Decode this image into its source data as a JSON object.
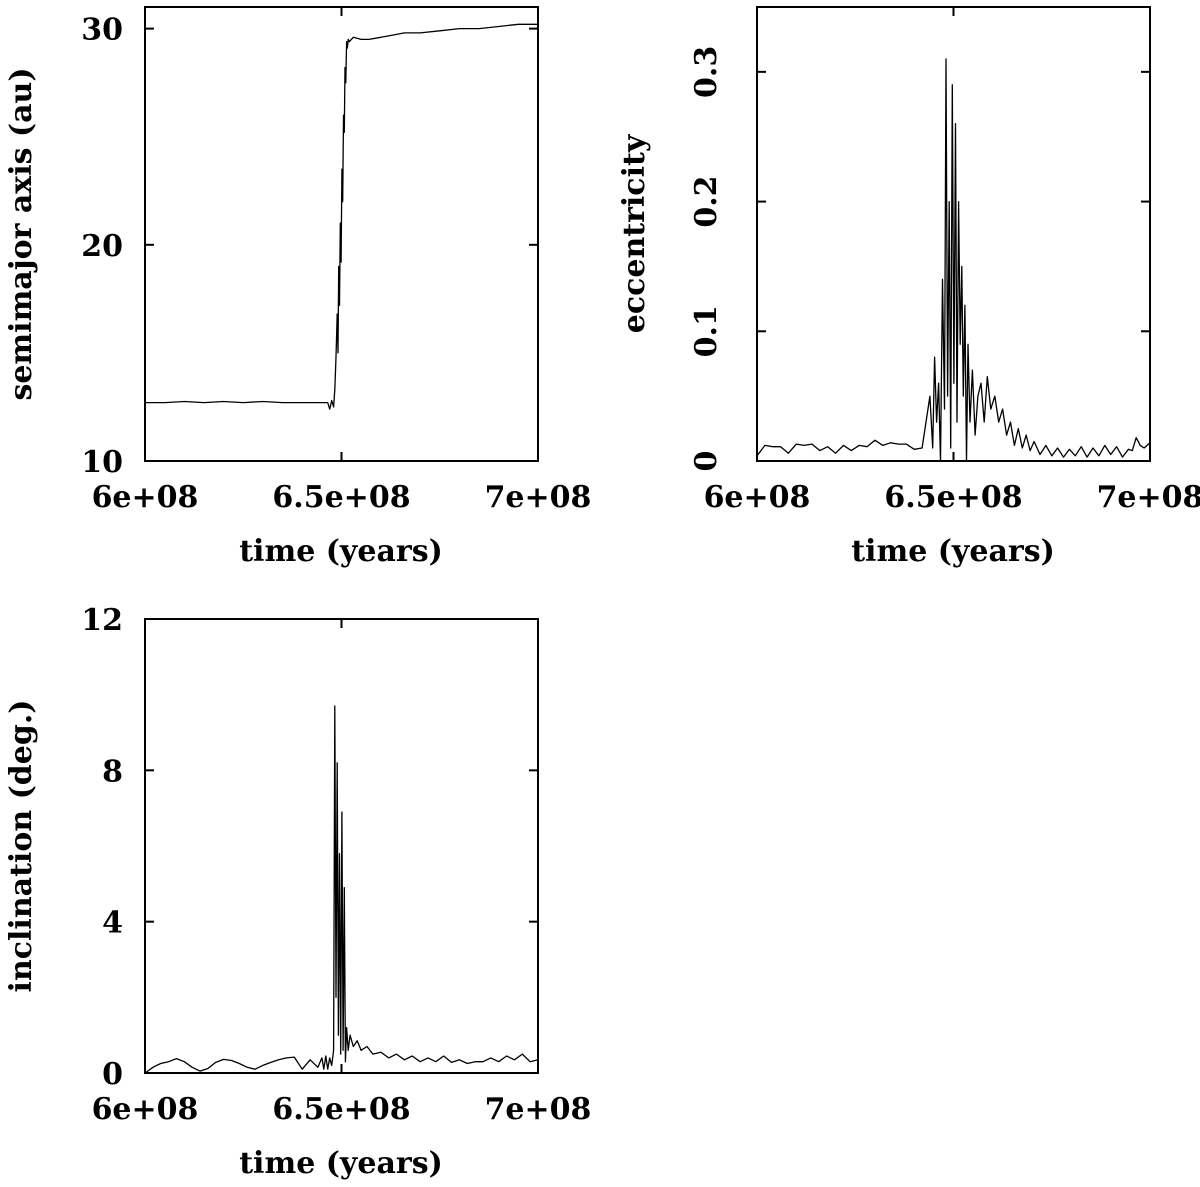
{
  "chart_data": [
    {
      "id": "semimajor",
      "type": "line",
      "title": "",
      "xlabel": "time (years)",
      "ylabel": "semimajor axis (au)",
      "xlim": [
        600000000,
        700000000
      ],
      "ylim": [
        10,
        31
      ],
      "xticks": [
        600000000,
        650000000,
        700000000
      ],
      "xtick_labels": [
        "6e+08",
        "6.5e+08",
        "7e+08"
      ],
      "yticks": [
        10,
        20,
        30
      ],
      "ytick_labels": [
        "10",
        "20",
        "30"
      ],
      "grid": false,
      "series": [
        {
          "name": "semimajor axis",
          "x": [
            600000000,
            605000000,
            610000000,
            615000000,
            620000000,
            625000000,
            630000000,
            635000000,
            640000000,
            645000000,
            646500000,
            647000000,
            647500000,
            648000000,
            648300000,
            648600000,
            648900000,
            649100000,
            649300000,
            649500000,
            649700000,
            649900000,
            650100000,
            650300000,
            650500000,
            650700000,
            650900000,
            651100000,
            651300000,
            651500000,
            651700000,
            652000000,
            653000000,
            655000000,
            657000000,
            660000000,
            663000000,
            666000000,
            670000000,
            675000000,
            680000000,
            685000000,
            690000000,
            695000000,
            700000000
          ],
          "values": [
            12.7,
            12.7,
            12.75,
            12.7,
            12.75,
            12.7,
            12.75,
            12.7,
            12.7,
            12.7,
            12.7,
            12.4,
            12.8,
            12.5,
            13.3,
            14.8,
            16.8,
            15.0,
            19.0,
            17.2,
            21.0,
            19.2,
            23.5,
            22.0,
            26.0,
            25.2,
            28.2,
            27.5,
            29.4,
            29.1,
            29.5,
            29.4,
            29.6,
            29.5,
            29.5,
            29.6,
            29.7,
            29.8,
            29.8,
            29.9,
            30.0,
            30.0,
            30.1,
            30.2,
            30.2
          ]
        }
      ]
    },
    {
      "id": "eccentricity",
      "type": "line",
      "title": "",
      "xlabel": "time (years)",
      "ylabel": "eccentricity",
      "xlim": [
        600000000,
        700000000
      ],
      "ylim": [
        0,
        0.35
      ],
      "xticks": [
        600000000,
        650000000,
        700000000
      ],
      "xtick_labels": [
        "6e+08",
        "6.5e+08",
        "7e+08"
      ],
      "yticks": [
        0,
        0.1,
        0.2,
        0.3
      ],
      "ytick_labels": [
        "0",
        "0.1",
        "0.2",
        "0.3"
      ],
      "grid": false,
      "series": [
        {
          "name": "eccentricity",
          "x": [
            600000000,
            602000000,
            604000000,
            606000000,
            608000000,
            610000000,
            612000000,
            614000000,
            616000000,
            618000000,
            620000000,
            622000000,
            624000000,
            626000000,
            628000000,
            630000000,
            632000000,
            634000000,
            636000000,
            638000000,
            640000000,
            642000000,
            643000000,
            644000000,
            644700000,
            645200000,
            645700000,
            646200000,
            646700000,
            647200000,
            647700000,
            648100000,
            648500000,
            648900000,
            649300000,
            649700000,
            650100000,
            650500000,
            650900000,
            651300000,
            651700000,
            652100000,
            652500000,
            652900000,
            653300000,
            653700000,
            654200000,
            654800000,
            655500000,
            656200000,
            657000000,
            657800000,
            658600000,
            659500000,
            660500000,
            661500000,
            662500000,
            663500000,
            664500000,
            665500000,
            666500000,
            667500000,
            668500000,
            669500000,
            670500000,
            672000000,
            673500000,
            675000000,
            676500000,
            678000000,
            679500000,
            681000000,
            682500000,
            684000000,
            685500000,
            687000000,
            688500000,
            690000000,
            691500000,
            693000000,
            694500000,
            695500000,
            696500000,
            697500000,
            698500000,
            700000000
          ],
          "values": [
            0.004,
            0.012,
            0.011,
            0.011,
            0.006,
            0.013,
            0.012,
            0.013,
            0.008,
            0.011,
            0.006,
            0.012,
            0.008,
            0.012,
            0.011,
            0.016,
            0.012,
            0.014,
            0.013,
            0.013,
            0.009,
            0.01,
            0.03,
            0.05,
            0.01,
            0.08,
            0.03,
            0.06,
            0.0,
            0.14,
            0.04,
            0.31,
            0.05,
            0.2,
            0.01,
            0.29,
            0.06,
            0.26,
            0.03,
            0.2,
            0.09,
            0.15,
            0.05,
            0.12,
            0.0,
            0.09,
            0.03,
            0.07,
            0.02,
            0.05,
            0.06,
            0.03,
            0.065,
            0.04,
            0.05,
            0.03,
            0.04,
            0.02,
            0.03,
            0.012,
            0.025,
            0.01,
            0.02,
            0.008,
            0.015,
            0.005,
            0.012,
            0.004,
            0.01,
            0.003,
            0.009,
            0.004,
            0.011,
            0.003,
            0.01,
            0.004,
            0.012,
            0.005,
            0.011,
            0.003,
            0.009,
            0.008,
            0.018,
            0.012,
            0.01,
            0.014
          ]
        }
      ]
    },
    {
      "id": "inclination",
      "type": "line",
      "title": "",
      "xlabel": "time (years)",
      "ylabel": "inclination (deg.)",
      "xlim": [
        600000000,
        700000000
      ],
      "ylim": [
        0,
        12
      ],
      "xticks": [
        600000000,
        650000000,
        700000000
      ],
      "xtick_labels": [
        "6e+08",
        "6.5e+08",
        "7e+08"
      ],
      "yticks": [
        0,
        4,
        8,
        12
      ],
      "ytick_labels": [
        "0",
        "4",
        "8",
        "12"
      ],
      "grid": false,
      "series": [
        {
          "name": "inclination",
          "x": [
            600000000,
            602000000,
            604000000,
            606000000,
            608000000,
            610000000,
            612000000,
            614000000,
            616000000,
            618000000,
            620000000,
            622000000,
            624000000,
            626000000,
            628000000,
            630000000,
            632000000,
            634000000,
            636000000,
            638000000,
            640000000,
            642000000,
            644000000,
            645000000,
            645500000,
            646000000,
            646500000,
            647000000,
            647500000,
            648000000,
            648300000,
            648600000,
            648900000,
            649200000,
            649500000,
            649800000,
            650100000,
            650400000,
            650700000,
            651000000,
            651300000,
            651700000,
            652200000,
            653000000,
            654000000,
            655000000,
            656500000,
            658000000,
            660000000,
            662000000,
            664000000,
            666000000,
            668000000,
            670000000,
            672000000,
            674000000,
            676000000,
            678000000,
            680000000,
            682000000,
            684000000,
            686000000,
            688000000,
            690000000,
            692000000,
            694000000,
            696000000,
            698000000,
            700000000
          ],
          "values": [
            0.0,
            0.15,
            0.25,
            0.3,
            0.38,
            0.3,
            0.15,
            0.05,
            0.12,
            0.28,
            0.36,
            0.33,
            0.25,
            0.15,
            0.1,
            0.2,
            0.28,
            0.35,
            0.4,
            0.42,
            0.1,
            0.35,
            0.15,
            0.4,
            0.1,
            0.45,
            0.1,
            0.4,
            0.2,
            0.6,
            9.7,
            2.0,
            8.2,
            1.0,
            5.8,
            0.5,
            6.9,
            0.6,
            4.9,
            0.3,
            1.2,
            0.6,
            1.0,
            0.7,
            0.85,
            0.6,
            0.7,
            0.5,
            0.55,
            0.4,
            0.5,
            0.35,
            0.45,
            0.3,
            0.4,
            0.3,
            0.45,
            0.28,
            0.35,
            0.25,
            0.3,
            0.3,
            0.4,
            0.3,
            0.45,
            0.35,
            0.5,
            0.3,
            0.35
          ]
        }
      ]
    }
  ]
}
